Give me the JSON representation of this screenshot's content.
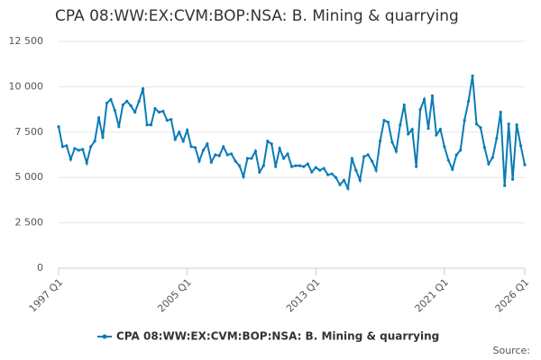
{
  "chart_data": {
    "type": "line",
    "title": "CPA 08:WW:EX:CVM:BOP:NSA: B. Mining & quarrying",
    "source": "Source:",
    "categories": [
      "1997 Q1",
      null,
      null,
      null,
      null,
      null,
      null,
      null,
      null,
      null,
      null,
      null,
      null,
      null,
      null,
      null,
      null,
      null,
      null,
      null,
      null,
      null,
      null,
      null,
      null,
      null,
      null,
      null,
      null,
      null,
      null,
      null,
      "2005 Q1",
      null,
      null,
      null,
      null,
      null,
      null,
      null,
      null,
      null,
      null,
      null,
      null,
      null,
      null,
      null,
      null,
      null,
      null,
      null,
      null,
      null,
      null,
      null,
      null,
      null,
      null,
      null,
      null,
      null,
      null,
      null,
      "2013 Q1",
      null,
      null,
      null,
      null,
      null,
      null,
      null,
      null,
      null,
      null,
      null,
      null,
      null,
      null,
      null,
      null,
      null,
      null,
      null,
      null,
      null,
      null,
      null,
      null,
      null,
      null,
      null,
      null,
      null,
      null,
      null,
      "2021 Q1",
      null,
      null,
      null,
      null,
      null,
      null,
      null,
      null,
      null,
      null,
      null,
      null,
      null,
      null,
      null,
      null,
      null,
      null,
      null,
      "2026 Q1"
    ],
    "series": [
      {
        "name": "CPA 08:WW:EX:CVM:BOP:NSA: B. Mining & quarrying",
        "color": "#0a7bb8",
        "values": [
          7800,
          6700,
          6750,
          6000,
          6600,
          6500,
          6550,
          5800,
          6700,
          7000,
          8300,
          7200,
          9100,
          9300,
          8700,
          7800,
          9000,
          9200,
          8950,
          8600,
          9200,
          9900,
          7900,
          7900,
          8800,
          8600,
          8650,
          8150,
          8200,
          7100,
          7500,
          7000,
          7600,
          6700,
          6650,
          5900,
          6500,
          6850,
          5850,
          6250,
          6200,
          6700,
          6250,
          6300,
          5900,
          5650,
          5050,
          6050,
          6050,
          6450,
          5300,
          5650,
          7000,
          6850,
          5600,
          6600,
          6050,
          6300,
          5600,
          5650,
          5650,
          5600,
          5750,
          5300,
          5550,
          5400,
          5500,
          5150,
          5200,
          5000,
          4600,
          4850,
          4400,
          6050,
          5400,
          4850,
          6150,
          6250,
          5900,
          5400,
          7000,
          8150,
          8050,
          6950,
          6450,
          7900,
          9000,
          7400,
          7650,
          5600,
          8750,
          9300,
          7700,
          9500,
          7350,
          7650,
          6700,
          5950,
          5450,
          6250,
          6500,
          8150,
          9200,
          10600,
          7950,
          7750,
          6650,
          5750,
          6100,
          7150,
          8600,
          4550,
          7950,
          4900,
          7900,
          6750,
          5700
        ]
      }
    ],
    "ylim": [
      0,
      12500
    ],
    "yticks": [
      0,
      {
        "value": 2500,
        "label": "2 500"
      },
      {
        "value": 5000,
        "label": "5 000"
      },
      {
        "value": 7500,
        "label": "7 500"
      },
      {
        "value": 10000,
        "label": "10 000"
      },
      {
        "value": 12500,
        "label": "12 500"
      }
    ],
    "grid": true
  }
}
